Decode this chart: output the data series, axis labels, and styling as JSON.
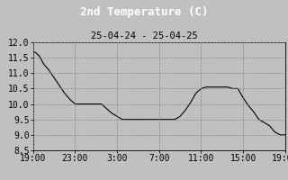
{
  "title": "2nd Temperature (C)",
  "subtitle": "25-04-24 - 25-04-25",
  "bg_color": "#c0c0c0",
  "plot_bg_color": "#c8c8c8",
  "line_color": "#000000",
  "ylim": [
    8.5,
    12.0
  ],
  "yticks": [
    8.5,
    9.0,
    9.5,
    10.0,
    10.5,
    11.0,
    11.5,
    12.0
  ],
  "xtick_labels": [
    "19:00",
    "23:00",
    "3:00",
    "7:00",
    "11:00",
    "15:00",
    "19:00"
  ],
  "xtick_positions": [
    0,
    4,
    8,
    12,
    16,
    20,
    24
  ],
  "time_hours": [
    0,
    0.3,
    0.6,
    1.0,
    1.5,
    2.0,
    2.5,
    3.0,
    3.5,
    4.0,
    4.5,
    5.0,
    5.5,
    6.0,
    6.5,
    7.0,
    7.5,
    8.0,
    8.5,
    9.0,
    9.5,
    10.0,
    10.5,
    11.0,
    11.5,
    12.0,
    12.5,
    13.0,
    13.5,
    14.0,
    14.5,
    15.0,
    15.5,
    16.0,
    16.5,
    17.0,
    17.5,
    18.0,
    18.5,
    19.0,
    19.5,
    20.0,
    20.5,
    21.0,
    21.5,
    22.0,
    22.5,
    23.0,
    23.5,
    24.0
  ],
  "temperature": [
    11.7,
    11.65,
    11.55,
    11.3,
    11.1,
    10.85,
    10.6,
    10.35,
    10.15,
    10.0,
    10.0,
    10.0,
    10.0,
    10.0,
    10.0,
    9.85,
    9.7,
    9.6,
    9.5,
    9.5,
    9.5,
    9.5,
    9.5,
    9.5,
    9.5,
    9.5,
    9.5,
    9.5,
    9.5,
    9.6,
    9.8,
    10.05,
    10.35,
    10.5,
    10.55,
    10.55,
    10.55,
    10.55,
    10.55,
    10.5,
    10.5,
    10.2,
    9.95,
    9.75,
    9.5,
    9.4,
    9.3,
    9.1,
    9.0,
    9.0
  ],
  "title_fontsize": 9,
  "subtitle_fontsize": 7.5,
  "tick_fontsize": 7,
  "grid_color": "#888888",
  "title_bg_color": "#000000",
  "title_text_color": "#ffffff"
}
